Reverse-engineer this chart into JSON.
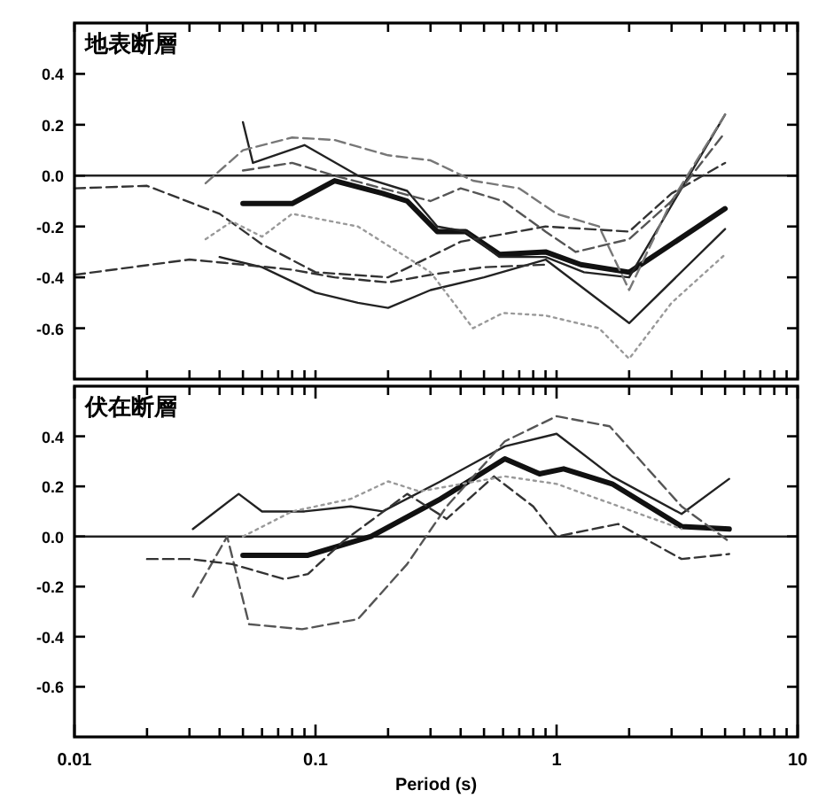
{
  "chart_data": [
    {
      "type": "line",
      "title": "地表断層",
      "log": "x",
      "xlim": [
        0.01,
        10
      ],
      "ylim": [
        -0.8,
        0.6
      ],
      "tick_labels": "y",
      "grid": false,
      "xticks": [
        {
          "value": 0.01,
          "label": null
        },
        {
          "value": 0.02,
          "label": null
        },
        {
          "value": 0.03,
          "label": null
        },
        {
          "value": 0.04,
          "label": null
        },
        {
          "value": 0.05,
          "label": null
        },
        {
          "value": 0.06,
          "label": null
        },
        {
          "value": 0.07,
          "label": null
        },
        {
          "value": 0.08,
          "label": null
        },
        {
          "value": 0.09,
          "label": null
        },
        {
          "value": 0.1,
          "label": null
        },
        {
          "value": 0.2,
          "label": null
        },
        {
          "value": 0.3,
          "label": null
        },
        {
          "value": 0.4,
          "label": null
        },
        {
          "value": 0.5,
          "label": null
        },
        {
          "value": 0.6,
          "label": null
        },
        {
          "value": 0.7,
          "label": null
        },
        {
          "value": 0.8,
          "label": null
        },
        {
          "value": 0.9,
          "label": null
        },
        {
          "value": 1,
          "label": null
        },
        {
          "value": 2,
          "label": null
        },
        {
          "value": 3,
          "label": null
        },
        {
          "value": 4,
          "label": null
        },
        {
          "value": 5,
          "label": null
        },
        {
          "value": 6,
          "label": null
        },
        {
          "value": 7,
          "label": null
        },
        {
          "value": 8,
          "label": null
        },
        {
          "value": 9,
          "label": null
        },
        {
          "value": 10,
          "label": null
        }
      ],
      "yticks": [
        -0.6,
        -0.4,
        -0.2,
        {
          "value": 0,
          "label": "0.0"
        },
        0.2,
        0.4
      ],
      "ref_lines": [
        {
          "axis": "y",
          "value": 0,
          "color": "#222222"
        }
      ],
      "series": [
        {
          "color": "#111111",
          "line_style": "solid",
          "x": [
            0.05,
            0.08,
            0.12,
            0.19,
            0.24,
            0.32,
            0.42,
            0.58,
            0.9,
            1.26,
            2,
            5
          ],
          "values": [
            -0.11,
            -0.11,
            -0.02,
            -0.07,
            -0.1,
            -0.22,
            -0.22,
            -0.31,
            -0.3,
            -0.35,
            -0.38,
            -0.13
          ]
        },
        {
          "color": "#222222",
          "line_style": "solid",
          "x": [
            0.05,
            0.055,
            0.09,
            0.15,
            0.24,
            0.32,
            0.42,
            0.58,
            0.9,
            1.3,
            2,
            5
          ],
          "values": [
            0.21,
            0.05,
            0.12,
            0.0,
            -0.06,
            -0.2,
            -0.22,
            -0.32,
            -0.32,
            -0.38,
            -0.4,
            0.24
          ]
        },
        {
          "color": "#222222",
          "line_style": "solid",
          "x": [
            0.04,
            0.06,
            0.1,
            0.15,
            0.2,
            0.3,
            0.5,
            0.9,
            2,
            5
          ],
          "values": [
            -0.32,
            -0.36,
            -0.46,
            -0.5,
            -0.52,
            -0.45,
            -0.4,
            -0.33,
            -0.58,
            -0.21
          ]
        },
        {
          "color": "#333333",
          "line_style": "dashed",
          "x": [
            0.01,
            0.03,
            0.05,
            0.08,
            0.12,
            0.2,
            0.3,
            0.5,
            0.9
          ],
          "values": [
            -0.39,
            -0.33,
            -0.35,
            -0.37,
            -0.4,
            -0.42,
            -0.39,
            -0.36,
            -0.35
          ]
        },
        {
          "color": "#333333",
          "line_style": "dashed",
          "x": [
            0.01,
            0.02,
            0.04,
            0.06,
            0.1,
            0.2,
            0.4,
            0.9,
            2,
            3,
            5
          ],
          "values": [
            -0.05,
            -0.04,
            -0.15,
            -0.27,
            -0.38,
            -0.4,
            -0.26,
            -0.2,
            -0.22,
            -0.07,
            0.05
          ]
        },
        {
          "color": "#999999",
          "line_style": "dotted",
          "x": [
            0.035,
            0.045,
            0.06,
            0.08,
            0.15,
            0.3,
            0.45,
            0.6,
            0.9,
            1.5,
            2,
            3,
            5
          ],
          "values": [
            -0.25,
            -0.18,
            -0.24,
            -0.15,
            -0.2,
            -0.38,
            -0.6,
            -0.54,
            -0.55,
            -0.6,
            -0.72,
            -0.5,
            -0.31
          ]
        },
        {
          "color": "#777777",
          "line_style": "dashed",
          "x": [
            0.035,
            0.05,
            0.08,
            0.12,
            0.2,
            0.3,
            0.45,
            0.7,
            1,
            1.5,
            2,
            3,
            5
          ],
          "values": [
            -0.03,
            0.1,
            0.15,
            0.14,
            0.08,
            0.06,
            -0.02,
            -0.05,
            -0.15,
            -0.2,
            -0.45,
            -0.1,
            0.24
          ]
        },
        {
          "color": "#555555",
          "line_style": "dashed",
          "x": [
            0.05,
            0.08,
            0.12,
            0.3,
            0.4,
            0.6,
            0.9,
            1.2,
            2,
            3,
            5
          ],
          "values": [
            0.02,
            0.05,
            0.0,
            -0.1,
            -0.05,
            -0.1,
            -0.22,
            -0.3,
            -0.25,
            -0.1,
            0.17
          ]
        }
      ]
    },
    {
      "type": "line",
      "title": "伏在断層",
      "xlabel": "Period (s)",
      "log": "x",
      "xlim": [
        0.01,
        10
      ],
      "ylim": [
        -0.8,
        0.6
      ],
      "grid": false,
      "xticks": [
        {
          "value": 0.01,
          "label": "0.01"
        },
        {
          "value": 0.02,
          "label": null
        },
        {
          "value": 0.03,
          "label": null
        },
        {
          "value": 0.04,
          "label": null
        },
        {
          "value": 0.05,
          "label": null
        },
        {
          "value": 0.06,
          "label": null
        },
        {
          "value": 0.07,
          "label": null
        },
        {
          "value": 0.08,
          "label": null
        },
        {
          "value": 0.09,
          "label": null
        },
        {
          "value": 0.1,
          "label": "0.1"
        },
        {
          "value": 0.2,
          "label": null
        },
        {
          "value": 0.3,
          "label": null
        },
        {
          "value": 0.4,
          "label": null
        },
        {
          "value": 0.5,
          "label": null
        },
        {
          "value": 0.6,
          "label": null
        },
        {
          "value": 0.7,
          "label": null
        },
        {
          "value": 0.8,
          "label": null
        },
        {
          "value": 0.9,
          "label": null
        },
        {
          "value": 1,
          "label": "1"
        },
        {
          "value": 2,
          "label": null
        },
        {
          "value": 3,
          "label": null
        },
        {
          "value": 4,
          "label": null
        },
        {
          "value": 5,
          "label": null
        },
        {
          "value": 6,
          "label": null
        },
        {
          "value": 7,
          "label": null
        },
        {
          "value": 8,
          "label": null
        },
        {
          "value": 9,
          "label": null
        },
        {
          "value": 10,
          "label": "10"
        }
      ],
      "yticks": [
        -0.6,
        -0.4,
        -0.2,
        {
          "value": 0,
          "label": "0.0"
        },
        0.2,
        0.4
      ],
      "ref_lines": [
        {
          "axis": "y",
          "value": 0,
          "color": "#222222"
        }
      ],
      "series": [
        {
          "color": "#111111",
          "line_style": "solid",
          "x": [
            0.05,
            0.093,
            0.17,
            0.33,
            0.61,
            0.85,
            1.07,
            1.7,
            3.3,
            5.2
          ],
          "values": [
            -0.075,
            -0.075,
            0.0,
            0.15,
            0.31,
            0.25,
            0.27,
            0.21,
            0.04,
            0.03
          ]
        },
        {
          "color": "#222222",
          "line_style": "solid",
          "x": [
            0.031,
            0.048,
            0.06,
            0.09,
            0.14,
            0.19,
            0.33,
            0.61,
            1.0,
            1.7,
            3.3,
            5.2
          ],
          "values": [
            0.03,
            0.17,
            0.1,
            0.1,
            0.12,
            0.1,
            0.22,
            0.36,
            0.41,
            0.24,
            0.09,
            0.23
          ]
        },
        {
          "color": "#555555",
          "line_style": "dashed",
          "x": [
            0.031,
            0.043,
            0.053,
            0.088,
            0.15,
            0.24,
            0.35,
            0.61,
            1.0,
            1.66,
            3.3,
            5.2
          ],
          "values": [
            -0.24,
            0.0,
            -0.35,
            -0.37,
            -0.33,
            -0.11,
            0.12,
            0.38,
            0.48,
            0.44,
            0.12,
            -0.02
          ]
        },
        {
          "color": "#333333",
          "line_style": "dashed",
          "x": [
            0.02,
            0.03,
            0.045,
            0.074,
            0.093,
            0.13,
            0.24,
            0.35,
            0.55,
            0.8,
            1.0,
            1.8,
            3.3,
            5.2
          ],
          "values": [
            -0.09,
            -0.09,
            -0.11,
            -0.17,
            -0.15,
            -0.02,
            0.17,
            0.07,
            0.24,
            0.12,
            0.0,
            0.05,
            -0.09,
            -0.07
          ]
        },
        {
          "color": "#999999",
          "line_style": "dotted",
          "x": [
            0.05,
            0.08,
            0.14,
            0.2,
            0.27,
            0.61,
            1.0,
            3.3
          ],
          "values": [
            0.0,
            0.1,
            0.15,
            0.22,
            0.18,
            0.24,
            0.21,
            0.03
          ]
        }
      ]
    }
  ]
}
